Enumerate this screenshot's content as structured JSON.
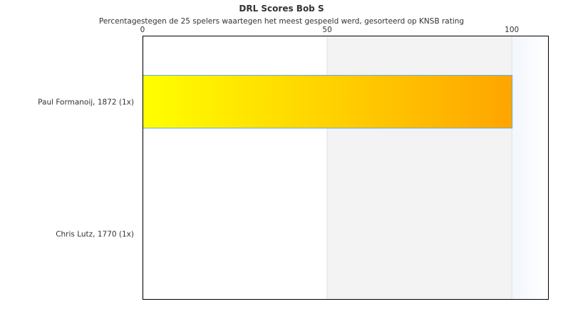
{
  "chart_data": {
    "type": "bar",
    "orientation": "horizontal",
    "title": "DRL Scores Bob S",
    "subtitle": "Percentagestegen de 25 spelers waartegen het meest gespeeld werd, gesorteerd op KNSB rating",
    "categories": [
      "Paul Formanoij, 1872 (1x)",
      "Chris Lutz, 1770 (1x)"
    ],
    "values": [
      100,
      0
    ],
    "xlim": [
      0,
      110
    ],
    "ticks": [
      "0",
      "50",
      "100"
    ],
    "tick_values": [
      0,
      50,
      100
    ],
    "axis_position": "top",
    "grid": true,
    "bar_gradient": [
      "#ffff00",
      "#ffa500"
    ],
    "bar_border": "#66aaee",
    "band_colors": [
      "#ffffff",
      "#f3f3f3",
      "#f4f8fc"
    ]
  }
}
